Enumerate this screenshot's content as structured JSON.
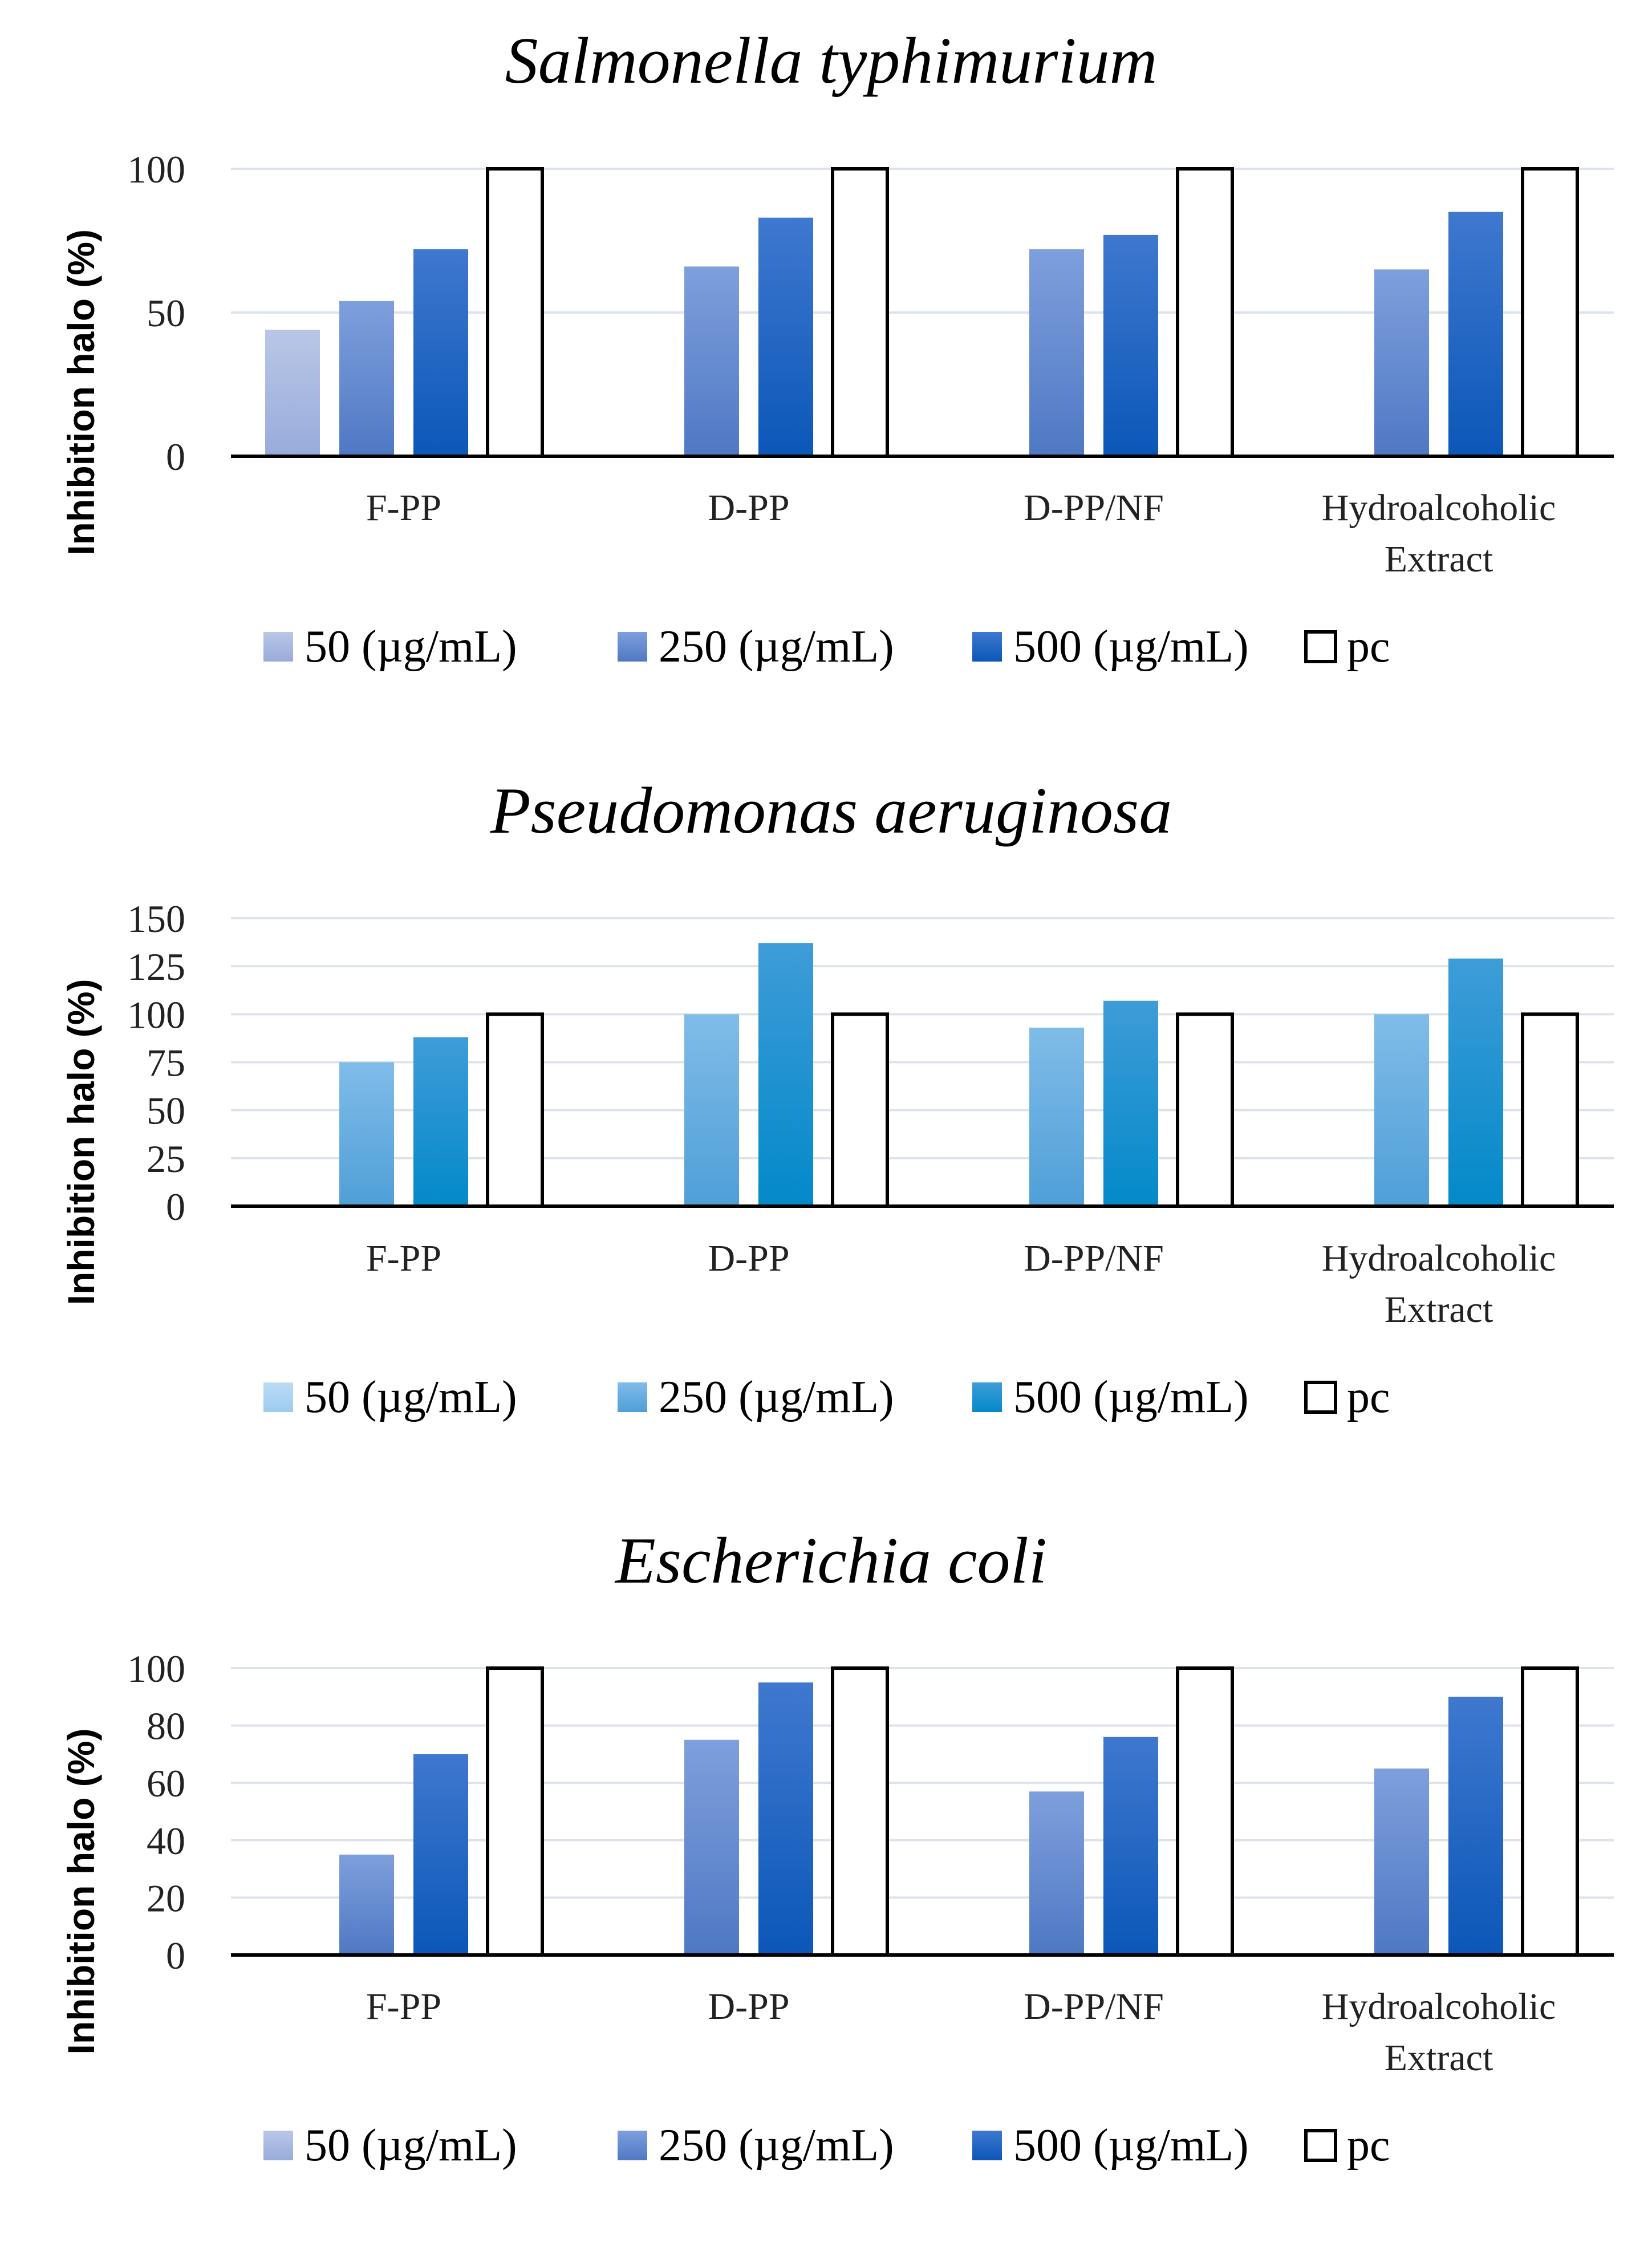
{
  "chart_data": [
    {
      "type": "bar",
      "title": "Salmonella typhimurium",
      "ylabel": "Inhibition halo  (%)",
      "xlabel": "",
      "categories": [
        [
          "F-PP"
        ],
        [
          "D-PP"
        ],
        [
          "D-PP/NF"
        ],
        [
          "Hydroalcoholic",
          "Extract"
        ]
      ],
      "ylim": [
        0,
        100
      ],
      "yticks": [
        0,
        50,
        100
      ],
      "grid": true,
      "legend_position": "bottom",
      "series": [
        {
          "name": "50 (µg/mL)",
          "values": [
            44,
            null,
            null,
            null
          ],
          "color_top": "#b9c6e6",
          "color_bottom": "#98acdb"
        },
        {
          "name": "250 (µg/mL)",
          "values": [
            54,
            66,
            72,
            65
          ],
          "color_top": "#7e9fdc",
          "color_bottom": "#4f78c4"
        },
        {
          "name": "500 (µg/mL)",
          "values": [
            72,
            83,
            77,
            85
          ],
          "color_top": "#3f78cf",
          "color_bottom": "#0b57b8"
        },
        {
          "name": "pc",
          "values": [
            100,
            100,
            100,
            100
          ],
          "color_top": "#ffffff",
          "color_bottom": "#ffffff"
        }
      ]
    },
    {
      "type": "bar",
      "title": "Pseudomonas aeruginosa",
      "ylabel": "Inhibition halo  (%)",
      "xlabel": "",
      "categories": [
        [
          "F-PP"
        ],
        [
          "D-PP"
        ],
        [
          "D-PP/NF"
        ],
        [
          "Hydroalcoholic",
          "Extract"
        ]
      ],
      "ylim": [
        0,
        150
      ],
      "yticks": [
        0,
        25,
        50,
        75,
        100,
        125,
        150
      ],
      "grid": true,
      "legend_position": "bottom",
      "series": [
        {
          "name": "50 (µg/mL)",
          "values": [
            null,
            null,
            null,
            null
          ],
          "color_top": "#bcdcf4",
          "color_bottom": "#9ccbee"
        },
        {
          "name": "250 (µg/mL)",
          "values": [
            75,
            100,
            93,
            100
          ],
          "color_top": "#80bce8",
          "color_bottom": "#4f9fd8"
        },
        {
          "name": "500 (µg/mL)",
          "values": [
            88,
            137,
            107,
            129
          ],
          "color_top": "#3e9cd8",
          "color_bottom": "#0389c9"
        },
        {
          "name": "pc",
          "values": [
            100,
            100,
            100,
            100
          ],
          "color_top": "#ffffff",
          "color_bottom": "#ffffff"
        }
      ]
    },
    {
      "type": "bar",
      "title": "Escherichia coli",
      "ylabel": "Inhibition halo  (%)",
      "xlabel": "",
      "categories": [
        [
          "F-PP"
        ],
        [
          "D-PP"
        ],
        [
          "D-PP/NF"
        ],
        [
          "Hydroalcoholic",
          "Extract"
        ]
      ],
      "ylim": [
        0,
        100
      ],
      "yticks": [
        0,
        20,
        40,
        60,
        80,
        100
      ],
      "grid": true,
      "legend_position": "bottom",
      "series": [
        {
          "name": "50 (µg/mL)",
          "values": [
            null,
            null,
            null,
            null
          ],
          "color_top": "#b9c6e6",
          "color_bottom": "#98acdb"
        },
        {
          "name": "250 (µg/mL)",
          "values": [
            35,
            75,
            57,
            65
          ],
          "color_top": "#7e9fdc",
          "color_bottom": "#4f78c4"
        },
        {
          "name": "500 (µg/mL)",
          "values": [
            70,
            95,
            76,
            90
          ],
          "color_top": "#3f78cf",
          "color_bottom": "#0b57b8"
        },
        {
          "name": "pc",
          "values": [
            100,
            100,
            100,
            100
          ],
          "color_top": "#ffffff",
          "color_bottom": "#ffffff"
        }
      ]
    }
  ]
}
